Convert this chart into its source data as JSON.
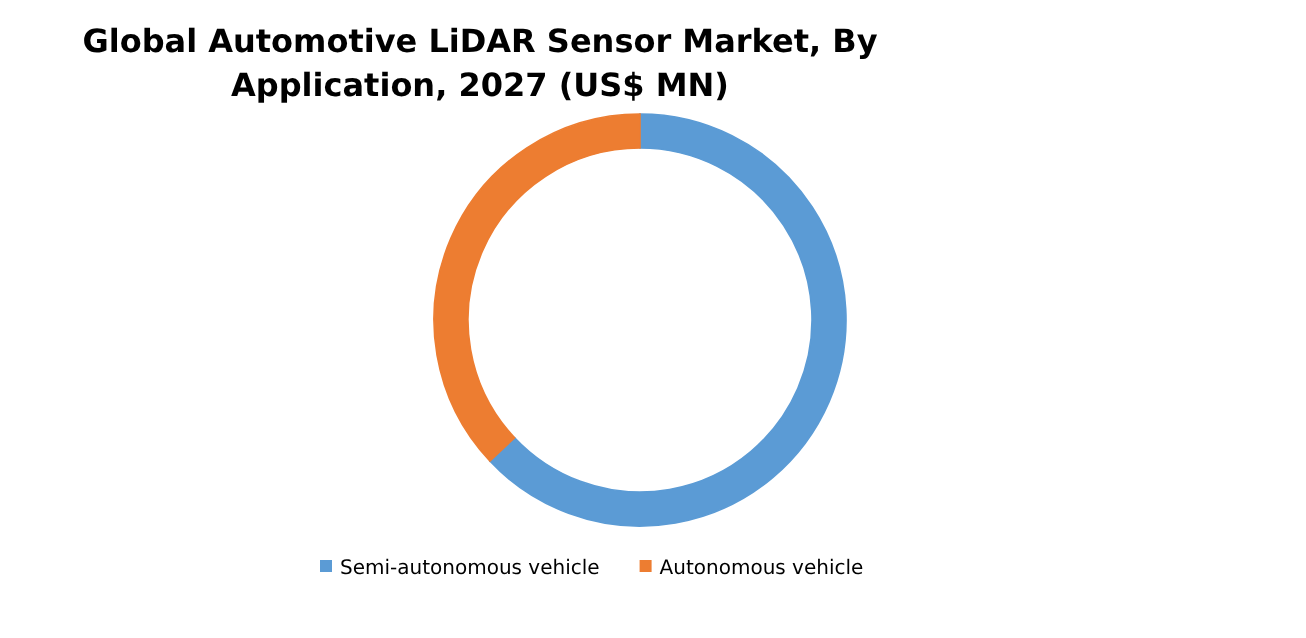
{
  "chart_data": {
    "type": "donut",
    "title": "Global Automotive LiDAR Sensor Market, By Application, 2027 (US$ MN)",
    "categories": [
      "Semi-autonomous vehicle",
      "Autonomous vehicle"
    ],
    "values": [
      63,
      37
    ],
    "colors": [
      "#5b9bd5",
      "#ed7d31"
    ],
    "legend": "bottom"
  }
}
